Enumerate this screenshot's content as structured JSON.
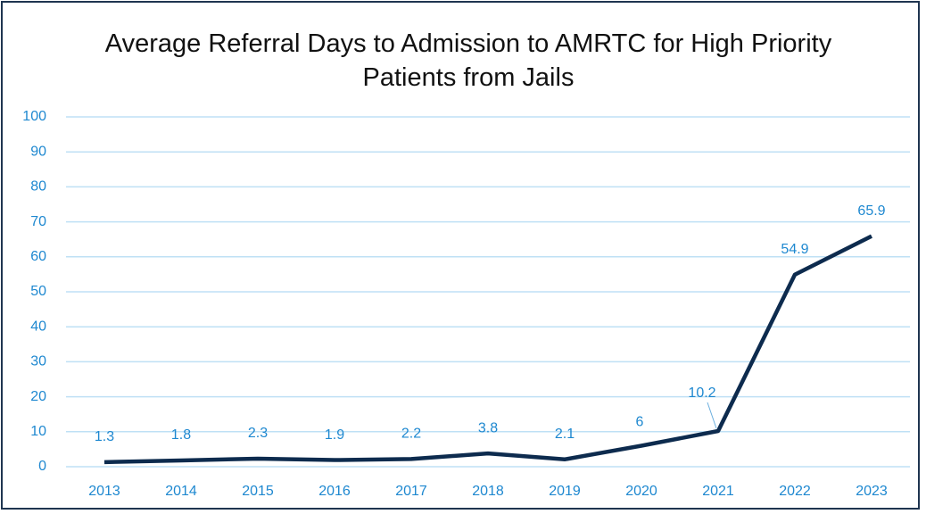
{
  "chart_data": {
    "type": "line",
    "title": "Average Referral Days to Admission to AMRTC for High Priority Patients from Jails",
    "categories": [
      "2013",
      "2014",
      "2015",
      "2016",
      "2017",
      "2018",
      "2019",
      "2020",
      "2021",
      "2022",
      "2023"
    ],
    "series": [
      {
        "name": "Average Referral Days",
        "color": "#0d2b4e",
        "values": [
          1.3,
          1.8,
          2.3,
          1.9,
          2.2,
          3.8,
          2.1,
          6,
          10.2,
          54.9,
          65.9
        ]
      }
    ],
    "ylim": [
      0,
      100
    ],
    "yticks": [
      0,
      10,
      20,
      30,
      40,
      50,
      60,
      70,
      80,
      90,
      100
    ],
    "grid": true
  }
}
